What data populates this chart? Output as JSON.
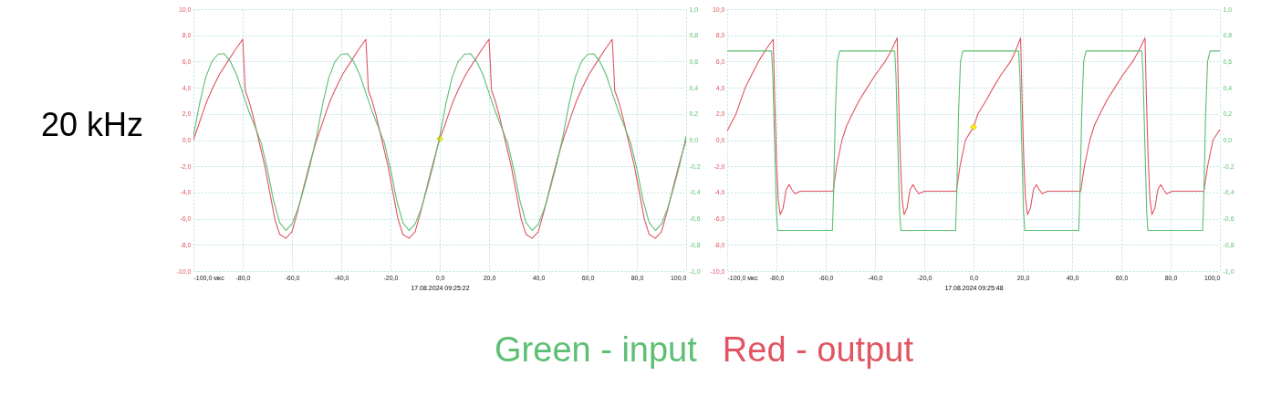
{
  "chart_data": [
    {
      "type": "line",
      "title": "20 kHz",
      "xlabel": "17.08.2024 09:25:22",
      "grid": true,
      "xlim": [
        -100,
        100
      ],
      "xticks": [
        {
          "value": -100,
          "label": "-100,0 мкс"
        },
        {
          "value": -80,
          "label": "-80,0"
        },
        {
          "value": -60,
          "label": "-60,0"
        },
        {
          "value": -40,
          "label": "-40,0"
        },
        {
          "value": -20,
          "label": "-20,0"
        },
        {
          "value": 0,
          "label": "0,0"
        },
        {
          "value": 20,
          "label": "20,0"
        },
        {
          "value": 40,
          "label": "40,0"
        },
        {
          "value": 60,
          "label": "60,0"
        },
        {
          "value": 80,
          "label": "80,0"
        },
        {
          "value": 100,
          "label": "100,0"
        }
      ],
      "ylim": [
        -10,
        10
      ],
      "yticks": [
        {
          "value": -10,
          "label": "-10,0"
        },
        {
          "value": -8,
          "label": "-8,0"
        },
        {
          "value": -6,
          "label": "-6,0"
        },
        {
          "value": -4,
          "label": "-4,0"
        },
        {
          "value": -2,
          "label": "-2,0"
        },
        {
          "value": 0,
          "label": "0,0"
        },
        {
          "value": 2,
          "label": "2,0"
        },
        {
          "value": 4,
          "label": "4,0"
        },
        {
          "value": 6,
          "label": "6,0"
        },
        {
          "value": 8,
          "label": "8,0"
        },
        {
          "value": 10,
          "label": "10,0"
        }
      ],
      "y2lim": [
        -1,
        1
      ],
      "y2ticks": [
        {
          "value": -1,
          "label": "-1,0"
        },
        {
          "value": -0.8,
          "label": "-0,8"
        },
        {
          "value": -0.6,
          "label": "-0,6"
        },
        {
          "value": -0.4,
          "label": "-0,4"
        },
        {
          "value": -0.2,
          "label": "-0,2"
        },
        {
          "value": 0,
          "label": "0,0"
        },
        {
          "value": 0.2,
          "label": "0,2"
        },
        {
          "value": 0.4,
          "label": "0,4"
        },
        {
          "value": 0.6,
          "label": "0,6"
        },
        {
          "value": 0.8,
          "label": "0,8"
        },
        {
          "value": 1,
          "label": "1,0"
        }
      ],
      "series": [
        {
          "color": "#e05561",
          "x": [
            -100,
            -98,
            -96.4,
            -94.5,
            -92.1,
            -89.5,
            -86.1,
            -83,
            -80,
            -79.4,
            -79,
            -77.5,
            -76,
            -73.5,
            -71,
            -69,
            -67,
            -65,
            -62.5,
            -60,
            -57.5,
            -55,
            -52.5,
            -50,
            -48,
            -46.4,
            -44.5,
            -42.1,
            -39.5,
            -36.1,
            -33,
            -30,
            -29.4,
            -29,
            -27.5,
            -26,
            -23.5,
            -21,
            -19,
            -17,
            -15,
            -12.5,
            -10,
            -7.5,
            -5,
            -2.5,
            0,
            2,
            3.6,
            5.5,
            7.9,
            10.5,
            13.9,
            17,
            20,
            20.6,
            21,
            22.5,
            24,
            26.5,
            29,
            31,
            33,
            35,
            37.5,
            40,
            42.5,
            45,
            47.5,
            50,
            52,
            53.6,
            55.5,
            57.9,
            60.5,
            63.9,
            67,
            70,
            70.6,
            71,
            72.5,
            74,
            76.5,
            79,
            81,
            83,
            85,
            87.5,
            90,
            92.5,
            95,
            97.5,
            100
          ],
          "values": [
            0,
            1.1,
            2,
            3,
            4,
            5,
            6,
            6.9,
            7.7,
            5.5,
            3.8,
            3,
            2,
            0,
            -2,
            -4,
            -6,
            -7.2,
            -7.5,
            -7,
            -5.3,
            -3.4,
            -1.6,
            0,
            1.1,
            2,
            3,
            4,
            5,
            6,
            6.9,
            7.7,
            5.5,
            3.8,
            3,
            2,
            0,
            -2,
            -4,
            -6,
            -7.2,
            -7.5,
            -7,
            -5.3,
            -3.4,
            -1.6,
            0.1,
            1.1,
            2,
            3,
            4,
            5,
            6,
            6.9,
            7.7,
            5.5,
            3.8,
            3,
            2,
            0,
            -2,
            -4,
            -6,
            -7.2,
            -7.5,
            -7,
            -5.3,
            -3.4,
            -1.6,
            0,
            1.1,
            2,
            3,
            4,
            5,
            6,
            6.9,
            7.7,
            5.5,
            3.8,
            3,
            2,
            0,
            -2,
            -4,
            -6,
            -7.2,
            -7.5,
            -7,
            -5.3,
            -3.4,
            -1.6,
            0
          ]
        },
        {
          "color": "#5cbf72",
          "axis": "y2",
          "x": [
            -100,
            -97.5,
            -95,
            -92.5,
            -90,
            -87.5,
            -85,
            -82.5,
            -80,
            -77.5,
            -75,
            -72.5,
            -70,
            -67.5,
            -65,
            -62.5,
            -60,
            -57.5,
            -55,
            -52.5,
            -50,
            -47.5,
            -45,
            -42.5,
            -40,
            -37.5,
            -35,
            -32.5,
            -30,
            -27.5,
            -25,
            -22.5,
            -20,
            -17.5,
            -15,
            -12.5,
            -10,
            -7.5,
            -5,
            -2.5,
            0,
            2.5,
            5,
            7.5,
            10,
            12.5,
            15,
            17.5,
            20,
            22.5,
            25,
            27.5,
            30,
            32.5,
            35,
            37.5,
            40,
            42.5,
            45,
            47.5,
            50,
            52.5,
            55,
            57.5,
            60,
            62.5,
            65,
            67.5,
            70,
            72.5,
            75,
            77.5,
            80,
            82.5,
            85,
            87.5,
            90,
            92.5,
            95,
            97.5,
            100
          ],
          "values": [
            0.03,
            0.28,
            0.48,
            0.6,
            0.655,
            0.66,
            0.6,
            0.5,
            0.36,
            0.22,
            0.1,
            -0.02,
            -0.22,
            -0.46,
            -0.63,
            -0.69,
            -0.64,
            -0.52,
            -0.36,
            -0.18,
            0.03,
            0.28,
            0.48,
            0.6,
            0.655,
            0.66,
            0.6,
            0.5,
            0.36,
            0.22,
            0.1,
            -0.02,
            -0.22,
            -0.46,
            -0.63,
            -0.69,
            -0.64,
            -0.52,
            -0.36,
            -0.18,
            0.03,
            0.28,
            0.48,
            0.6,
            0.655,
            0.66,
            0.6,
            0.5,
            0.36,
            0.22,
            0.1,
            -0.02,
            -0.22,
            -0.46,
            -0.63,
            -0.69,
            -0.64,
            -0.52,
            -0.36,
            -0.18,
            0.03,
            0.28,
            0.48,
            0.6,
            0.655,
            0.66,
            0.6,
            0.5,
            0.36,
            0.22,
            0.1,
            -0.02,
            -0.22,
            -0.46,
            -0.63,
            -0.69,
            -0.64,
            -0.52,
            -0.36,
            -0.18,
            0.03
          ]
        },
        {
          "type": "scatter",
          "marker": "diamond",
          "color": "#ffee00",
          "x": [
            0
          ],
          "values": [
            0.1
          ]
        }
      ]
    },
    {
      "type": "line",
      "xlabel": "17.08.2024 09:25:48",
      "grid": true,
      "legend": "bottom",
      "xlim": [
        -100,
        100
      ],
      "xticks": [
        {
          "value": -100,
          "label": "-100,0 мкс"
        },
        {
          "value": -80,
          "label": "-80,0"
        },
        {
          "value": -60,
          "label": "-60,0"
        },
        {
          "value": -40,
          "label": "-40,0"
        },
        {
          "value": -20,
          "label": "-20,0"
        },
        {
          "value": 0,
          "label": "0,0"
        },
        {
          "value": 20,
          "label": "20,0"
        },
        {
          "value": 40,
          "label": "40,0"
        },
        {
          "value": 60,
          "label": "60,0"
        },
        {
          "value": 80,
          "label": "80,0"
        },
        {
          "value": 100,
          "label": "100,0"
        }
      ],
      "ylim": [
        -10,
        10
      ],
      "yticks": [
        {
          "value": -10,
          "label": "-10,0"
        },
        {
          "value": -8,
          "label": "-8,0"
        },
        {
          "value": -6,
          "label": "-6,0"
        },
        {
          "value": -4,
          "label": "-4,0"
        },
        {
          "value": -2,
          "label": "-2,0"
        },
        {
          "value": 0,
          "label": "0,0"
        },
        {
          "value": 2,
          "label": "2,0"
        },
        {
          "value": 4,
          "label": "4,0"
        },
        {
          "value": 6,
          "label": "6,0"
        },
        {
          "value": 8,
          "label": "8,0"
        },
        {
          "value": 10,
          "label": "10,0"
        }
      ],
      "y2lim": [
        -1,
        1
      ],
      "y2ticks": [
        {
          "value": -1,
          "label": "-1,0"
        },
        {
          "value": -0.8,
          "label": "-0,8"
        },
        {
          "value": -0.6,
          "label": "-0,6"
        },
        {
          "value": -0.4,
          "label": "-0,4"
        },
        {
          "value": -0.2,
          "label": "-0,2"
        },
        {
          "value": 0,
          "label": "0,0"
        },
        {
          "value": 0.2,
          "label": "0,2"
        },
        {
          "value": 0.4,
          "label": "0,4"
        },
        {
          "value": 0.6,
          "label": "0,6"
        },
        {
          "value": 0.8,
          "label": "0,8"
        },
        {
          "value": 1,
          "label": "1,0"
        }
      ],
      "series": [
        {
          "name": "Green - input",
          "color": "#5cbf72",
          "axis": "y2",
          "x": [
            -100,
            -82,
            -81.5,
            -80.8,
            -80,
            -79.5,
            -57.3,
            -56.8,
            -56.1,
            -55.3,
            -54.3,
            -32,
            -31.5,
            -30.8,
            -30,
            -29.5,
            -7.3,
            -6.8,
            -6.1,
            -5.3,
            -4.3,
            18.3,
            18.8,
            19.5,
            20.3,
            20.8,
            42.7,
            43.2,
            43.9,
            44.7,
            45.7,
            68.3,
            68.8,
            69.5,
            70.3,
            70.8,
            93,
            93.5,
            94.2,
            95,
            96,
            100
          ],
          "values": [
            0.68,
            0.68,
            0.5,
            0,
            -0.55,
            -0.69,
            -0.69,
            -0.4,
            0.2,
            0.6,
            0.68,
            0.68,
            0.5,
            0,
            -0.55,
            -0.69,
            -0.69,
            -0.4,
            0.2,
            0.6,
            0.68,
            0.68,
            0.5,
            0,
            -0.55,
            -0.69,
            -0.69,
            -0.4,
            0.2,
            0.6,
            0.68,
            0.68,
            0.5,
            0,
            -0.55,
            -0.69,
            -0.69,
            -0.4,
            0.2,
            0.6,
            0.68,
            0.68
          ]
        },
        {
          "name": "Red - output",
          "color": "#e05561",
          "x": [
            -100,
            -96.4,
            -92.7,
            -87.3,
            -84,
            -81.3,
            -80.7,
            -80,
            -79.3,
            -78.5,
            -77.3,
            -76.1,
            -74.9,
            -73.7,
            -72.5,
            -70.3,
            -57,
            -55.5,
            -53.4,
            -51.5,
            -49.2,
            -46.5,
            -43.2,
            -39.8,
            -35.9,
            -33.5,
            -31,
            -30.4,
            -29.7,
            -29,
            -28.2,
            -27,
            -25.8,
            -24.6,
            -23.4,
            -22.2,
            -20,
            -7,
            -5.5,
            -3.3,
            0,
            1.8,
            5,
            8,
            11.2,
            15,
            17,
            19.1,
            19.7,
            20.4,
            21.1,
            21.9,
            23.1,
            24.3,
            25.5,
            26.7,
            27.9,
            30,
            43.5,
            45,
            47.2,
            49,
            51.3,
            54,
            57.3,
            60.7,
            64.6,
            67,
            69.6,
            70.2,
            70.9,
            71.6,
            72.4,
            73.6,
            74.8,
            76,
            77.2,
            78.4,
            80.6,
            93.5,
            95,
            97.2,
            100
          ],
          "values": [
            0.7,
            2,
            4,
            6,
            7,
            7.7,
            3,
            -1.5,
            -4.5,
            -5.7,
            -5.2,
            -3.8,
            -3.4,
            -3.8,
            -4.1,
            -3.9,
            -3.9,
            -1.9,
            0,
            1.1,
            2,
            3,
            4,
            5,
            6,
            6.8,
            7.8,
            3,
            -1.5,
            -4.5,
            -5.7,
            -5.2,
            -3.8,
            -3.4,
            -3.8,
            -4.1,
            -3.9,
            -3.9,
            -2,
            0,
            1,
            2,
            3,
            4,
            5,
            6,
            6.8,
            7.8,
            3,
            -1.5,
            -4.5,
            -5.7,
            -5.2,
            -3.8,
            -3.4,
            -3.8,
            -4.1,
            -3.9,
            -3.9,
            -2,
            0,
            1.1,
            2,
            3,
            4,
            5,
            6,
            6.8,
            7.8,
            3,
            -1.5,
            -4.5,
            -5.7,
            -5.2,
            -3.8,
            -3.4,
            -3.8,
            -4.1,
            -3.9,
            -3.9,
            -2,
            0,
            0.8
          ]
        },
        {
          "type": "scatter",
          "marker": "diamond",
          "color": "#ffee00",
          "x": [
            0
          ],
          "values": [
            1
          ]
        }
      ]
    }
  ]
}
